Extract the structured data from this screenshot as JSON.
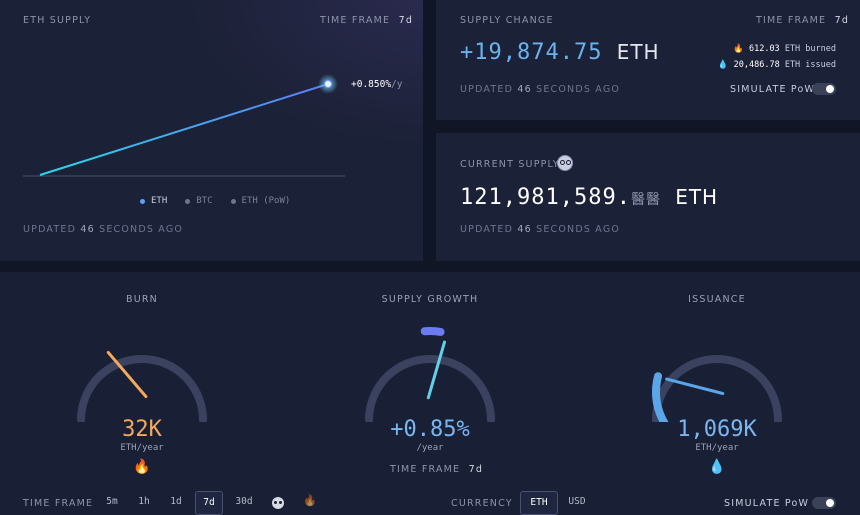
{
  "eth_supply": {
    "title": "ETH SUPPLY",
    "time_frame_label": "TIME FRAME",
    "time_frame_value": "7d",
    "rate_label": "+0.850%",
    "rate_unit": "/y",
    "legend": [
      "ETH",
      "BTC",
      "ETH (PoW)"
    ],
    "updated_prefix": "UPDATED",
    "updated_num": "46",
    "updated_suffix": "SECONDS AGO",
    "colors": {
      "eth": "#62a2f5",
      "btc": "#6f7590",
      "pow": "#6f7590",
      "line": "#39c4f0"
    }
  },
  "supply_change": {
    "title": "SUPPLY CHANGE",
    "time_frame_label": "TIME FRAME",
    "time_frame_value": "7d",
    "value": "+19,874.75",
    "unit": "ETH",
    "burned_value": "612.03",
    "burned_text": "ETH burned",
    "issued_value": "20,486.78",
    "issued_text": "ETH issued",
    "updated_prefix": "UPDATED",
    "updated_num": "46",
    "updated_suffix": "SECONDS AGO",
    "simulate_label": "SIMULATE PoW"
  },
  "current_supply": {
    "title": "CURRENT SUPPLY",
    "value": "121,981,589.",
    "decimals": "醫醫",
    "unit": "ETH",
    "updated_prefix": "UPDATED",
    "updated_num": "46",
    "updated_suffix": "SECONDS AGO"
  },
  "gauges": {
    "burn": {
      "title": "BURN",
      "value": "32K",
      "unit": "ETH/year",
      "color": "#f4a95b",
      "level": 0.35
    },
    "growth": {
      "title": "SUPPLY GROWTH",
      "value": "+0.85%",
      "unit": "/year",
      "color": "#62b4f0",
      "level": 0.56,
      "time_frame_label": "TIME FRAME",
      "time_frame_value": "7d"
    },
    "issuance": {
      "title": "ISSUANCE",
      "value": "1,069K",
      "unit": "ETH/year",
      "color": "#5aa6e8",
      "level": 0.22
    }
  },
  "footer": {
    "time_frame_label": "TIME FRAME",
    "time_frames": [
      "5m",
      "1h",
      "1d",
      "7d",
      "30d"
    ],
    "active_time_frame": "7d",
    "currency_label": "CURRENCY",
    "currencies": [
      "ETH",
      "USD"
    ],
    "active_currency": "ETH",
    "simulate_label": "SIMULATE PoW"
  }
}
